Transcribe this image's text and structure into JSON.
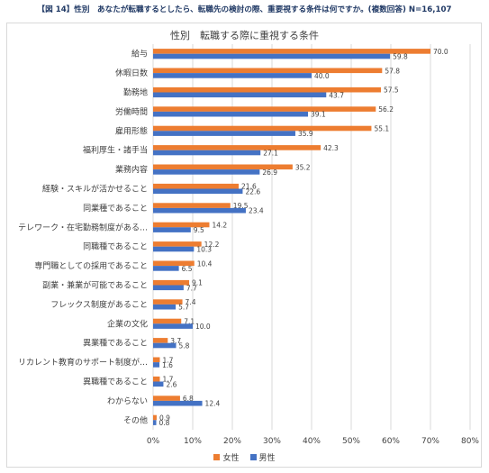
{
  "header": "【図 14】性別　あなたが転職するとしたら、転職先の検討の際、重要視する条件は何ですか。(複数回答) N=16,107",
  "colors": {
    "female": "#ed7d31",
    "male": "#4472c4",
    "grid": "#d9d9d9",
    "text": "#404040"
  },
  "chart_data": {
    "type": "bar",
    "orientation": "horizontal",
    "title": "性別　転職する際に重視する条件",
    "categories": [
      "給与",
      "休暇日数",
      "勤務地",
      "労働時間",
      "雇用形態",
      "福利厚生・諸手当",
      "業務内容",
      "経験・スキルが活かせること",
      "同業種であること",
      "テレワーク・在宅勤務制度がある…",
      "同職種であること",
      "専門職としての採用であること",
      "副業・兼業が可能であること",
      "フレックス制度があること",
      "企業の文化",
      "異業種であること",
      "リカレント教育のサポート制度が…",
      "異職種であること",
      "わからない",
      "その他"
    ],
    "series": [
      {
        "name": "女性",
        "values": [
          70.0,
          57.8,
          57.5,
          56.2,
          55.1,
          42.3,
          35.2,
          21.6,
          19.5,
          14.2,
          12.2,
          10.4,
          9.1,
          7.4,
          7.1,
          3.7,
          1.7,
          1.7,
          6.8,
          0.9
        ]
      },
      {
        "name": "男性",
        "values": [
          59.8,
          40.0,
          43.7,
          39.1,
          35.9,
          27.1,
          26.9,
          22.6,
          23.4,
          9.5,
          10.3,
          6.5,
          7.7,
          5.7,
          10.0,
          5.8,
          1.6,
          2.6,
          12.4,
          0.8
        ]
      }
    ],
    "xlim": [
      0,
      80
    ],
    "xticks": [
      "0%",
      "10%",
      "20%",
      "30%",
      "40%",
      "50%",
      "60%",
      "70%",
      "80%"
    ],
    "grid": "vertical",
    "legend": "bottom-center"
  }
}
